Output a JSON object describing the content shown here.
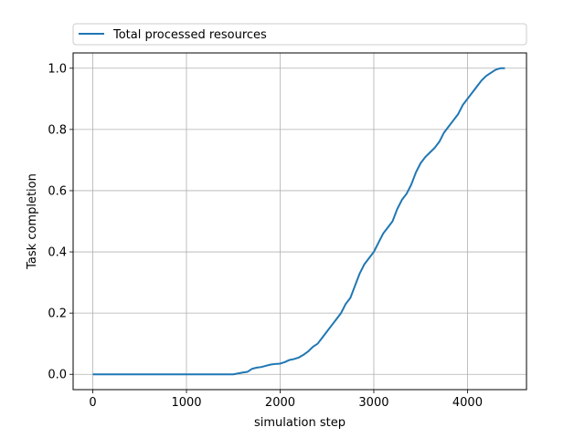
{
  "chart_data": {
    "type": "line",
    "xlabel": "simulation step",
    "ylabel": "Task completion",
    "xlim": [
      -210,
      4630
    ],
    "ylim": [
      -0.05,
      1.05
    ],
    "xticks": [
      0,
      1000,
      2000,
      3000,
      4000
    ],
    "yticks": [
      0.0,
      0.2,
      0.4,
      0.6,
      0.8,
      1.0
    ],
    "xtick_labels": [
      "0",
      "1000",
      "2000",
      "3000",
      "4000"
    ],
    "ytick_labels": [
      "0.0",
      "0.2",
      "0.4",
      "0.6",
      "0.8",
      "1.0"
    ],
    "grid": true,
    "legend": "top, spanning the width above the plot",
    "series": [
      {
        "name": "Total processed resources",
        "color": "#1f77b4",
        "x": [
          0,
          500,
          1000,
          1500,
          1550,
          1600,
          1650,
          1700,
          1750,
          1800,
          1850,
          1900,
          1950,
          2000,
          2050,
          2100,
          2150,
          2200,
          2250,
          2300,
          2350,
          2400,
          2450,
          2500,
          2550,
          2600,
          2650,
          2700,
          2750,
          2800,
          2850,
          2900,
          2950,
          3000,
          3050,
          3100,
          3150,
          3200,
          3250,
          3300,
          3350,
          3400,
          3450,
          3500,
          3550,
          3600,
          3650,
          3700,
          3750,
          3800,
          3850,
          3900,
          3950,
          4000,
          4050,
          4100,
          4150,
          4200,
          4250,
          4300,
          4350,
          4400
        ],
        "values": [
          0.0,
          0.0,
          0.0,
          0.0,
          0.003,
          0.006,
          0.008,
          0.018,
          0.022,
          0.024,
          0.028,
          0.032,
          0.034,
          0.035,
          0.04,
          0.047,
          0.05,
          0.055,
          0.064,
          0.075,
          0.09,
          0.1,
          0.12,
          0.14,
          0.16,
          0.18,
          0.2,
          0.23,
          0.25,
          0.29,
          0.33,
          0.36,
          0.38,
          0.4,
          0.43,
          0.46,
          0.48,
          0.5,
          0.54,
          0.57,
          0.59,
          0.62,
          0.66,
          0.69,
          0.71,
          0.725,
          0.74,
          0.76,
          0.79,
          0.81,
          0.83,
          0.85,
          0.88,
          0.9,
          0.92,
          0.94,
          0.96,
          0.975,
          0.985,
          0.995,
          1.0,
          1.0
        ]
      }
    ]
  }
}
